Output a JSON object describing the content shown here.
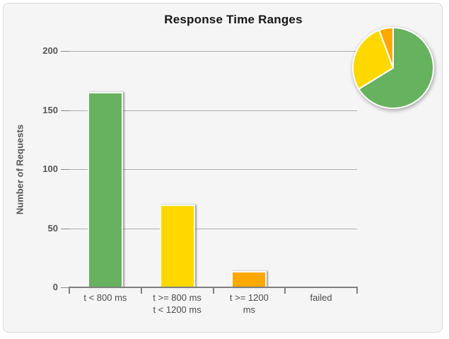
{
  "window": {
    "background": "#ffffff",
    "panel_background": "#f5f5f5",
    "panel_border": "#d9d9d9"
  },
  "chart_data": [
    {
      "type": "bar",
      "title": "Response Time Ranges",
      "xlabel": "",
      "ylabel": "Number of Requests",
      "categories": [
        "t < 800 ms",
        "t >= 800 ms\nt < 1200 ms",
        "t >= 1200\nms",
        "failed"
      ],
      "values": [
        165,
        70,
        14,
        0
      ],
      "bar_colors": [
        "#66b25e",
        "#ffd800",
        "#ffa800",
        null
      ],
      "ylim": [
        0,
        200
      ],
      "yticks": [
        0,
        50,
        100,
        150,
        200
      ],
      "grid": true,
      "grid_color": "#ababab",
      "axis_color": "#7f7f7f",
      "text_color": "#555555",
      "legend_position": "none"
    },
    {
      "type": "pie",
      "position": "top-right inset",
      "start_angle_deg": 0,
      "direction": "clockwise",
      "slices": [
        {
          "label": "t < 800 ms",
          "value": 165,
          "percent": 66.3,
          "color": "#66b25e"
        },
        {
          "label": "t >= 800 ms, t < 1200 ms",
          "value": 70,
          "percent": 28.1,
          "color": "#ffd800"
        },
        {
          "label": "t >= 1200 ms",
          "value": 14,
          "percent": 5.6,
          "color": "#ffa800"
        },
        {
          "label": "failed",
          "value": 0,
          "percent": 0,
          "color": null
        }
      ]
    }
  ]
}
